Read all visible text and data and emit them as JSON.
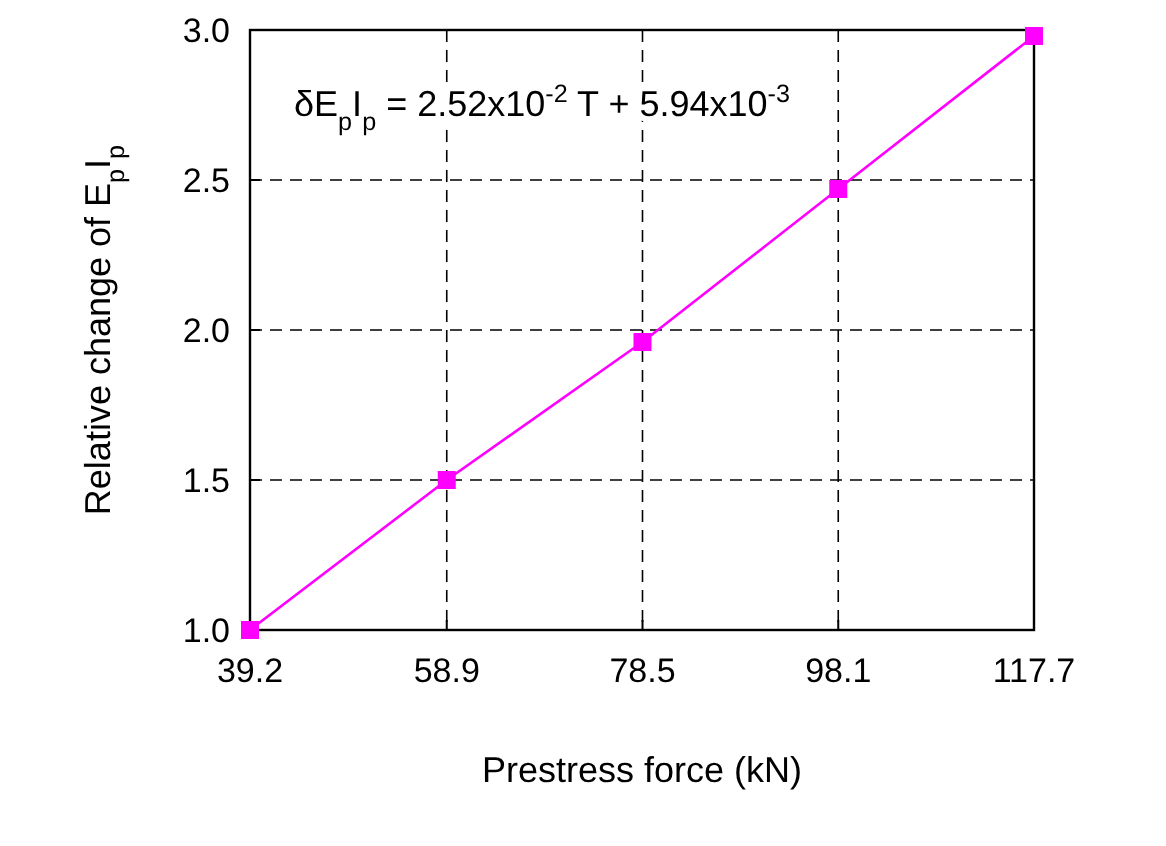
{
  "chart_data": {
    "type": "line",
    "xlabel": "Prestress force (kN)",
    "ylabel": "Relative change of  E$_{p}$I$_{p}$",
    "annotations": [
      "δE$_{p}$I$_{p}$ = 2.52x10$^{-2}$ T + 5.94x10$^{-3}$"
    ],
    "x": [
      39.2,
      58.9,
      78.5,
      98.1,
      117.7
    ],
    "series": [
      {
        "color": "#ff00ff",
        "values": [
          1.0,
          1.5,
          1.96,
          2.47,
          2.98
        ]
      }
    ],
    "xlim": [
      39.2,
      117.7
    ],
    "xticks": [
      39.2,
      58.9,
      78.5,
      98.1,
      117.7
    ],
    "ylim": [
      1.0,
      3.0
    ],
    "yticks": [
      {
        "value": 1.0,
        "label": "1.0"
      },
      {
        "value": 1.5,
        "label": "1.5"
      },
      {
        "value": 2.0,
        "label": "2.0"
      },
      {
        "value": 2.5,
        "label": "2.5"
      },
      {
        "value": 3.0,
        "label": "3.0"
      }
    ],
    "grid": true,
    "marker": "square",
    "line_style": "solid"
  }
}
